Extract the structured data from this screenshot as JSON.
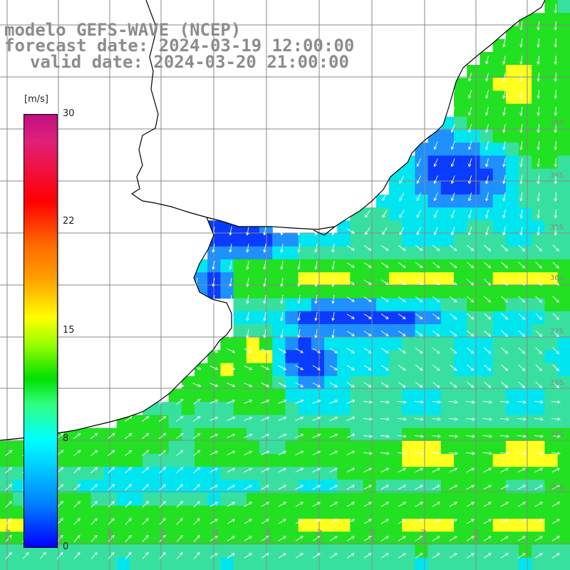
{
  "title": {
    "line1": "modelo GEFS-WAVE (NCEP)",
    "line2": "forecast date: 2024-03-19 12:00:00",
    "line3": "valid date: 2024-03-20 21:00:00"
  },
  "colorbar": {
    "unit": "[m/s]",
    "ticks": [
      "30",
      "22",
      "15",
      "8",
      "0"
    ],
    "colors": [
      "#c01080",
      "#ff0000",
      "#ffa000",
      "#ffff00",
      "#00e000",
      "#00ffff",
      "#0080ff",
      "#0000ff"
    ]
  },
  "map": {
    "variable": "wind speed with wind direction arrows",
    "ocean_palette": {
      "low": "#0a3cff",
      "mid_low": "#1e90ff",
      "mid": "#00e6f0",
      "mid_high": "#38e0a0",
      "high": "#22e022",
      "peak": "#ffff20"
    },
    "land_color": "#ffffff",
    "coastline_color": "#000000",
    "grid_color": "#888888",
    "arrow_color": "#ffffff",
    "lat_labels": [
      "33S",
      "34S",
      "35S",
      "36S",
      "37S",
      "38S",
      "39S",
      "40S"
    ],
    "lon_labels": [
      "61W",
      "60W",
      "59W",
      "58W",
      "57W",
      "56W",
      "55W",
      "54W",
      "53W",
      "52W"
    ]
  }
}
